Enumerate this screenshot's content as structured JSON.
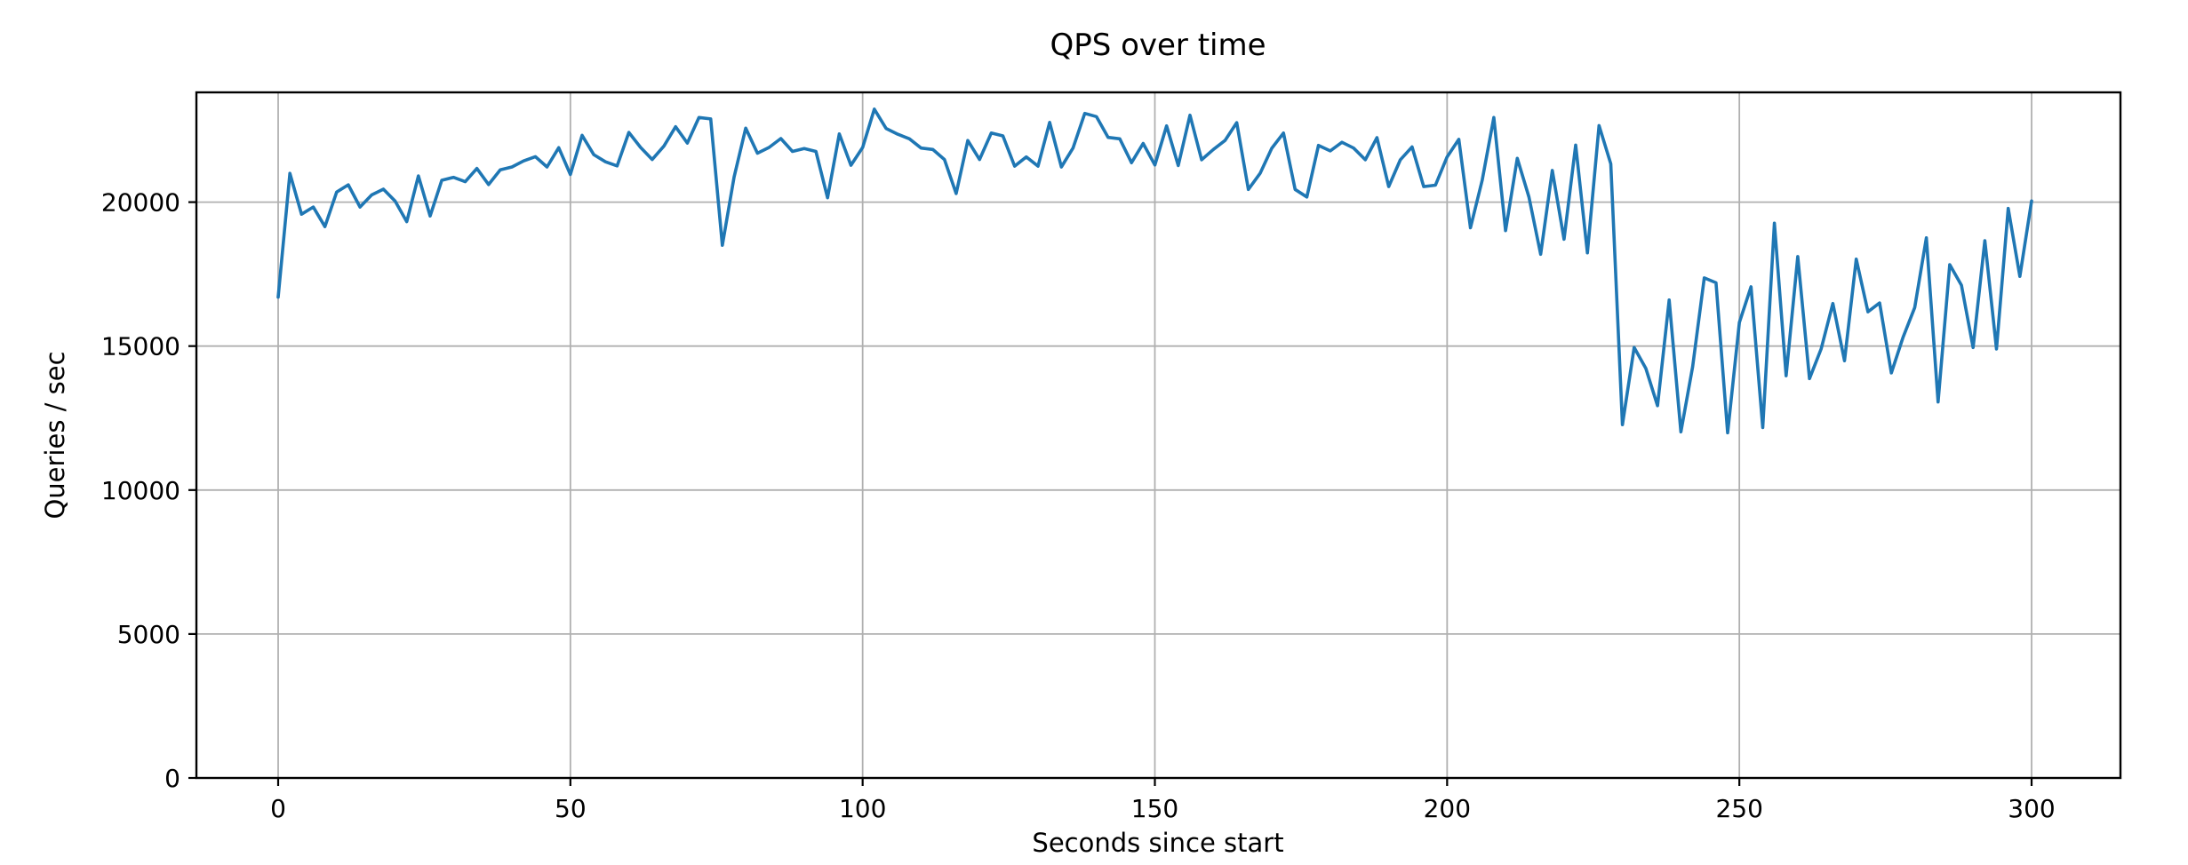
{
  "figure": {
    "background": "#ffffff"
  },
  "chart_data": {
    "type": "line",
    "title": "QPS over time",
    "xlabel": "Seconds since start",
    "ylabel": "Queries / sec",
    "series_name": "QPS",
    "line_color": "#1f77b4",
    "grid_color": "#b0b0b0",
    "spine_color": "#000000",
    "grid": true,
    "legend": false,
    "xlim": [
      -14,
      315
    ],
    "ylim": [
      0,
      23820
    ],
    "x_ticks": [
      0,
      50,
      100,
      150,
      200,
      250,
      300
    ],
    "y_ticks": [
      0,
      5000,
      10000,
      15000,
      20000
    ],
    "x": [
      0,
      2,
      4,
      6,
      8,
      10,
      12,
      14,
      16,
      18,
      20,
      22,
      24,
      26,
      28,
      30,
      32,
      34,
      36,
      38,
      40,
      42,
      44,
      46,
      48,
      50,
      52,
      54,
      56,
      58,
      60,
      62,
      64,
      66,
      68,
      70,
      72,
      74,
      76,
      78,
      80,
      82,
      84,
      86,
      88,
      90,
      92,
      94,
      96,
      98,
      100,
      102,
      104,
      106,
      108,
      110,
      112,
      114,
      116,
      118,
      120,
      122,
      124,
      126,
      128,
      130,
      132,
      134,
      136,
      138,
      140,
      142,
      144,
      146,
      148,
      150,
      152,
      154,
      156,
      158,
      160,
      162,
      164,
      166,
      168,
      170,
      172,
      174,
      176,
      178,
      180,
      182,
      184,
      186,
      188,
      190,
      192,
      194,
      196,
      198,
      200,
      202,
      204,
      206,
      208,
      210,
      212,
      214,
      216,
      218,
      220,
      222,
      224,
      226,
      228,
      230,
      232,
      234,
      236,
      238,
      240,
      242,
      244,
      246,
      248,
      250,
      252,
      254,
      256,
      258,
      260,
      262,
      264,
      266,
      268,
      270,
      272,
      274,
      276,
      278,
      280,
      282,
      284,
      286,
      288,
      290,
      292,
      294,
      296,
      298,
      300
    ],
    "values": [
      16700,
      21000,
      19580,
      19830,
      19150,
      20350,
      20600,
      19830,
      20250,
      20450,
      20040,
      19320,
      20910,
      19520,
      20760,
      20860,
      20710,
      21170,
      20610,
      21120,
      21220,
      21430,
      21580,
      21220,
      21890,
      20960,
      22320,
      21650,
      21400,
      21260,
      22420,
      21900,
      21480,
      21950,
      22620,
      22050,
      22940,
      22890,
      18500,
      20870,
      22570,
      21700,
      21900,
      22210,
      21760,
      21860,
      21760,
      20150,
      22370,
      21280,
      21900,
      23230,
      22560,
      22360,
      22200,
      21880,
      21830,
      21480,
      20300,
      22140,
      21480,
      22400,
      22300,
      21250,
      21570,
      21250,
      22770,
      21220,
      21880,
      23080,
      22970,
      22250,
      22200,
      21370,
      22040,
      21290,
      22650,
      21270,
      23020,
      21470,
      21830,
      22140,
      22760,
      20440,
      21000,
      21870,
      22400,
      20440,
      20180,
      21970,
      21780,
      22080,
      21880,
      21470,
      22240,
      20540,
      21470,
      21920,
      20540,
      20590,
      21570,
      22180,
      19110,
      20760,
      22940,
      19010,
      21520,
      20180,
      18190,
      21100,
      18710,
      21980,
      18240,
      22660,
      21330,
      12270,
      14950,
      14230,
      12930,
      16600,
      12020,
      14280,
      17370,
      17200,
      11990,
      15820,
      17060,
      12170,
      19270,
      13970,
      18110,
      13870,
      14900,
      16480,
      14490,
      18020,
      16190,
      16500,
      14070,
      15300,
      16340,
      18760,
      13060,
      17830,
      17110,
      14950,
      18660,
      14900,
      19780,
      17420,
      20040
    ]
  }
}
